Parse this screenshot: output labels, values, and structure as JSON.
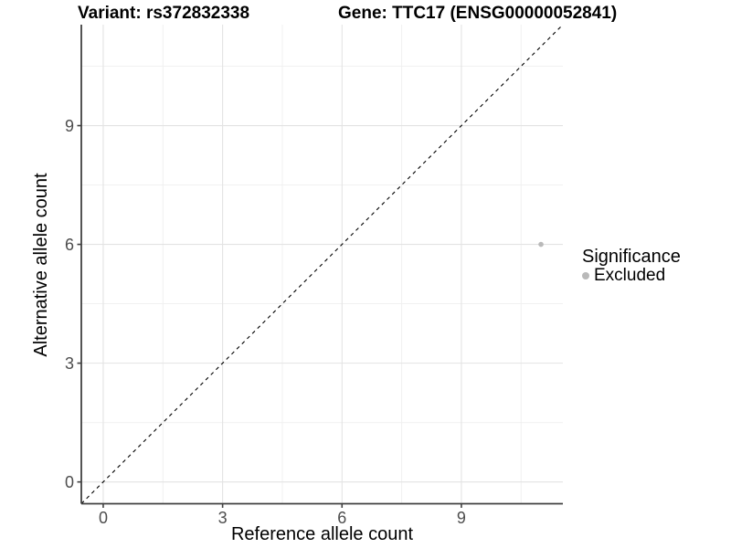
{
  "chart_data": {
    "type": "scatter",
    "titles": {
      "left": "Variant: rs372832338",
      "right": "Gene: TTC17 (ENSG00000052841)"
    },
    "xlabel": "Reference allele count",
    "ylabel": "Alternative allele count",
    "xlim": [
      -0.55,
      11.55
    ],
    "ylim": [
      -0.55,
      11.55
    ],
    "x_major_ticks": [
      0,
      3,
      6,
      9
    ],
    "y_major_ticks": [
      0,
      3,
      6,
      9
    ],
    "x_minor_ticks": [
      1.5,
      4.5,
      7.5,
      10.5
    ],
    "y_minor_ticks": [
      1.5,
      4.5,
      7.5,
      10.5
    ],
    "grid": "major+minor",
    "identity_line": {
      "slope": 1,
      "intercept": 0,
      "linetype": "dashed",
      "color": "#000000"
    },
    "points": [
      {
        "x": 11,
        "y": 6,
        "significance": "Excluded",
        "color": "#b9b9b9",
        "radius": 2.8
      }
    ],
    "legend": {
      "title": "Significance",
      "position": "right",
      "items": [
        {
          "label": "Excluded",
          "color": "#b9b9b9"
        }
      ]
    },
    "colors": {
      "panel_bg": "#ffffff",
      "grid_major": "#e3e3e3",
      "grid_minor": "#efefef",
      "axis_line": "#404040",
      "tick_mark": "#404040",
      "tick_label": "#4d4d4d"
    }
  }
}
